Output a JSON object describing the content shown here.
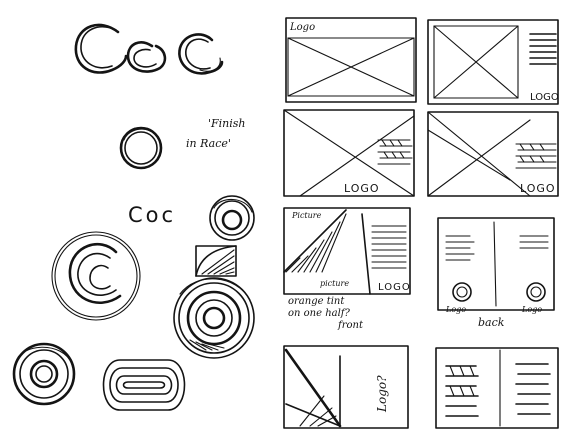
{
  "left_page": {
    "wordmarks": [
      "Coc",
      "Coc"
    ],
    "note_lines": [
      "'Finish",
      "in Race'"
    ]
  },
  "right_page": {
    "panel1_logo": "Logo",
    "panel2_logo": "LOGO",
    "panel3_logo": "LOGO",
    "panel4_logo": "LOGO",
    "panel5_picture_top": "Picture",
    "panel5_picture_bottom": "picture",
    "panel5_logo": "LOGO",
    "panel5_note_lines": [
      "orange tint",
      "on one half?",
      "front"
    ],
    "panel6_logo_left": "Logo",
    "panel6_logo_right": "Logo",
    "panel6_back": "back",
    "panel7_logo": "Logo?"
  }
}
